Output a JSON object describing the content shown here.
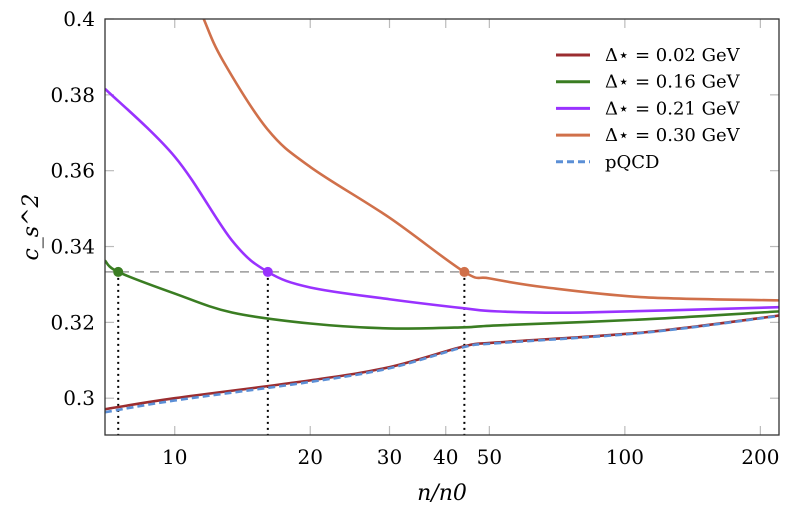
{
  "chart_data": {
    "type": "line",
    "title": "",
    "xlabel": "n/n0",
    "ylabel": "c_s^2",
    "xscale": "log",
    "xlim": [
      7.0,
      220
    ],
    "ylim": [
      0.2903,
      0.4
    ],
    "xticks": [
      10,
      20,
      30,
      40,
      50,
      100,
      200
    ],
    "xtick_labels": [
      "10",
      "20",
      "30",
      "40",
      "50",
      "100",
      "200"
    ],
    "yticks": [
      0.3,
      0.32,
      0.34,
      0.36,
      0.38,
      0.4
    ],
    "ytick_labels": [
      "0.3",
      "0.32",
      "0.34",
      "0.36",
      "0.38",
      "0.4"
    ],
    "legend_position": "top-right",
    "reference_line": {
      "y": 0.3333,
      "style": "dashed",
      "color": "#999999"
    },
    "series": [
      {
        "name": "Δ⋆ = 0.02 GeV",
        "color": "#9b2d30",
        "style": "solid",
        "x": [
          7.0,
          10,
          20,
          30,
          44,
          52,
          111,
          220
        ],
        "y": [
          0.2971,
          0.3,
          0.3047,
          0.3082,
          0.3137,
          0.3147,
          0.3174,
          0.3218
        ]
      },
      {
        "name": "Δ⋆ = 0.16 GeV",
        "color": "#3a7d22",
        "style": "solid",
        "x": [
          7.0,
          7.49,
          10,
          13.4,
          20,
          30,
          44,
          52,
          111,
          220
        ],
        "y": [
          0.3363,
          0.3333,
          0.3276,
          0.3226,
          0.3197,
          0.3184,
          0.3187,
          0.3192,
          0.3208,
          0.3229
        ],
        "marker": {
          "x": 7.49,
          "y": 0.3333
        }
      },
      {
        "name": "Δ⋆ = 0.21 GeV",
        "color": "#9932ff",
        "style": "solid",
        "x": [
          7.0,
          10,
          13.4,
          16.1,
          20,
          30,
          44,
          52,
          80,
          220
        ],
        "y": [
          0.3816,
          0.3637,
          0.3416,
          0.3333,
          0.3292,
          0.3261,
          0.3237,
          0.3229,
          0.3226,
          0.324
        ],
        "marker": {
          "x": 16.1,
          "y": 0.3333
        }
      },
      {
        "name": "Δ⋆ = 0.30 GeV",
        "color": "#d0704a",
        "style": "solid",
        "x": [
          10.6,
          11.6,
          12.8,
          16.1,
          20,
          30,
          44,
          50,
          67,
          111,
          220
        ],
        "y": [
          0.412,
          0.4,
          0.389,
          0.3708,
          0.361,
          0.3476,
          0.3333,
          0.3316,
          0.3292,
          0.3266,
          0.3258
        ],
        "marker": {
          "x": 44,
          "y": 0.3333
        }
      },
      {
        "name": "pQCD",
        "color": "#5b8fd6",
        "style": "dashed",
        "x": [
          7.0,
          10,
          20,
          30,
          44,
          52,
          111,
          220
        ],
        "y": [
          0.2963,
          0.2994,
          0.3043,
          0.3079,
          0.3135,
          0.3145,
          0.3173,
          0.3217
        ]
      }
    ]
  }
}
